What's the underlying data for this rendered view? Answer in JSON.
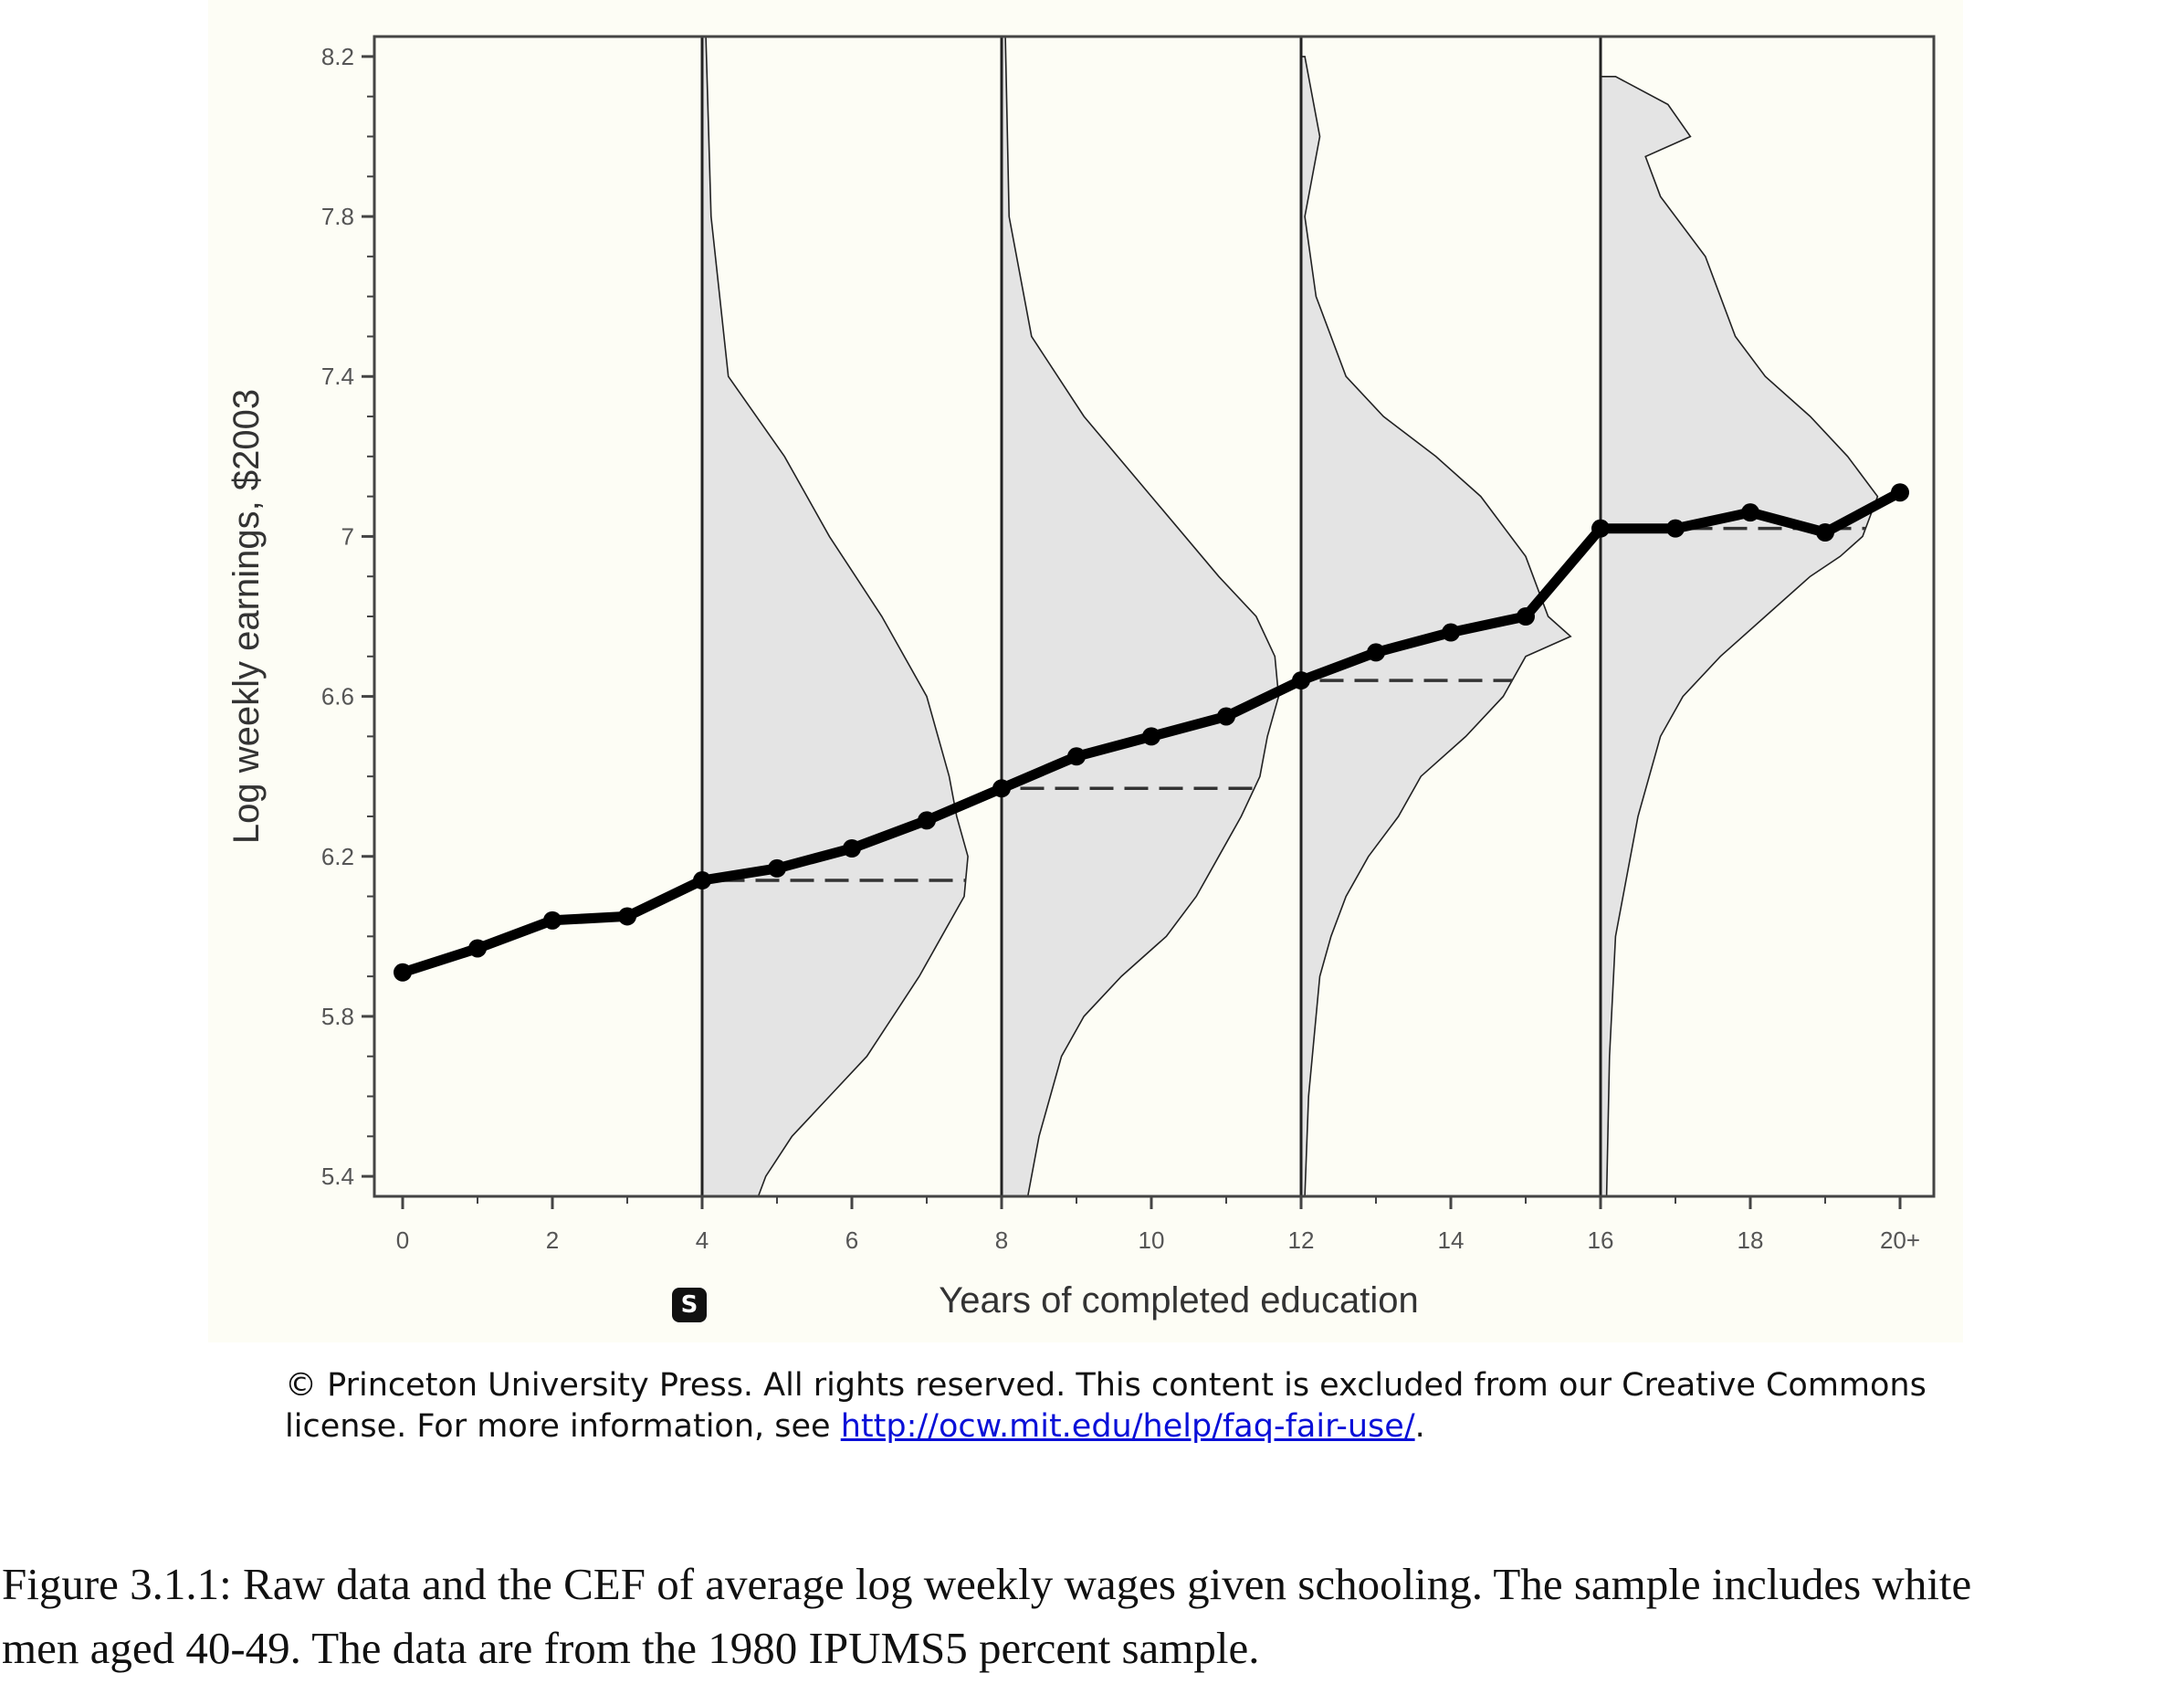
{
  "chart_data": {
    "type": "line",
    "xlabel": "Years of completed education",
    "ylabel": "Log weekly earnings, $2003",
    "xlim": [
      0,
      20
    ],
    "ylim": [
      5.35,
      8.25
    ],
    "x_tick_labels": [
      "0",
      "2",
      "4",
      "6",
      "8",
      "10",
      "12",
      "14",
      "16",
      "18",
      "20+"
    ],
    "y_tick_labels": [
      "5.4",
      "5.8",
      "6.2",
      "6.6",
      "7",
      "7.4",
      "7.8",
      "8.2"
    ],
    "grid": false,
    "legend": "none",
    "series": [
      {
        "x": [
          0,
          1,
          2,
          3,
          4,
          5,
          6,
          7,
          8,
          9,
          10,
          11,
          12,
          13,
          14,
          15,
          16,
          17,
          18,
          19,
          20
        ],
        "y": [
          5.91,
          5.97,
          6.04,
          6.05,
          6.14,
          6.17,
          6.22,
          6.29,
          6.37,
          6.45,
          6.5,
          6.55,
          6.64,
          6.71,
          6.76,
          6.8,
          7.02,
          7.02,
          7.06,
          7.01,
          7.11
        ]
      }
    ],
    "densities": [
      {
        "x": 4,
        "mean": 6.14,
        "profile": [
          [
            8.25,
            0.05
          ],
          [
            7.8,
            0.12
          ],
          [
            7.4,
            0.35
          ],
          [
            7.2,
            1.1
          ],
          [
            7.0,
            1.7
          ],
          [
            6.8,
            2.4
          ],
          [
            6.6,
            3.0
          ],
          [
            6.4,
            3.3
          ],
          [
            6.3,
            3.4
          ],
          [
            6.2,
            3.55
          ],
          [
            6.1,
            3.5
          ],
          [
            6.0,
            3.2
          ],
          [
            5.9,
            2.9
          ],
          [
            5.8,
            2.55
          ],
          [
            5.7,
            2.2
          ],
          [
            5.6,
            1.7
          ],
          [
            5.5,
            1.2
          ],
          [
            5.4,
            0.85
          ],
          [
            5.35,
            0.75
          ]
        ]
      },
      {
        "x": 8,
        "mean": 6.37,
        "profile": [
          [
            8.25,
            0.05
          ],
          [
            7.8,
            0.1
          ],
          [
            7.5,
            0.4
          ],
          [
            7.3,
            1.1
          ],
          [
            7.1,
            2.0
          ],
          [
            6.9,
            2.9
          ],
          [
            6.8,
            3.4
          ],
          [
            6.7,
            3.65
          ],
          [
            6.6,
            3.7
          ],
          [
            6.5,
            3.55
          ],
          [
            6.4,
            3.45
          ],
          [
            6.3,
            3.2
          ],
          [
            6.2,
            2.9
          ],
          [
            6.1,
            2.6
          ],
          [
            6.0,
            2.2
          ],
          [
            5.9,
            1.6
          ],
          [
            5.8,
            1.1
          ],
          [
            5.7,
            0.8
          ],
          [
            5.5,
            0.5
          ],
          [
            5.35,
            0.35
          ]
        ]
      },
      {
        "x": 12,
        "mean": 6.64,
        "profile": [
          [
            8.2,
            0.05
          ],
          [
            8.0,
            0.25
          ],
          [
            7.8,
            0.05
          ],
          [
            7.6,
            0.2
          ],
          [
            7.4,
            0.6
          ],
          [
            7.3,
            1.1
          ],
          [
            7.2,
            1.8
          ],
          [
            7.1,
            2.4
          ],
          [
            7.0,
            2.8
          ],
          [
            6.95,
            3.0
          ],
          [
            6.9,
            3.1
          ],
          [
            6.8,
            3.3
          ],
          [
            6.75,
            3.6
          ],
          [
            6.7,
            3.0
          ],
          [
            6.6,
            2.7
          ],
          [
            6.5,
            2.2
          ],
          [
            6.4,
            1.6
          ],
          [
            6.3,
            1.3
          ],
          [
            6.2,
            0.9
          ],
          [
            6.1,
            0.6
          ],
          [
            6.0,
            0.4
          ],
          [
            5.9,
            0.25
          ],
          [
            5.6,
            0.1
          ],
          [
            5.35,
            0.05
          ]
        ]
      },
      {
        "x": 16,
        "mean": 7.02,
        "profile": [
          [
            8.15,
            0.2
          ],
          [
            8.08,
            0.9
          ],
          [
            8.0,
            1.2
          ],
          [
            7.95,
            0.6
          ],
          [
            7.85,
            0.8
          ],
          [
            7.7,
            1.4
          ],
          [
            7.5,
            1.8
          ],
          [
            7.4,
            2.2
          ],
          [
            7.3,
            2.8
          ],
          [
            7.2,
            3.3
          ],
          [
            7.1,
            3.7
          ],
          [
            7.05,
            3.6
          ],
          [
            7.0,
            3.5
          ],
          [
            6.95,
            3.2
          ],
          [
            6.9,
            2.8
          ],
          [
            6.8,
            2.2
          ],
          [
            6.7,
            1.6
          ],
          [
            6.6,
            1.1
          ],
          [
            6.5,
            0.8
          ],
          [
            6.3,
            0.5
          ],
          [
            6.0,
            0.2
          ],
          [
            5.7,
            0.12
          ],
          [
            5.35,
            0.08
          ]
        ]
      }
    ]
  },
  "source_icon": "scribd-s-icon",
  "copyright": {
    "text": "© Princeton University Press. All rights reserved. This content is excluded from our Creative Commons license. For more information, see ",
    "link_text": "http://ocw.mit.edu/help/faq-fair-use/",
    "suffix": "."
  },
  "caption": {
    "line1": "Figure 3.1.1: Raw data and the CEF of average log weekly wages given schooling. The sample includes white",
    "line2": "men aged 40-49. The data are from the 1980 IPUMS5 percent sample."
  }
}
